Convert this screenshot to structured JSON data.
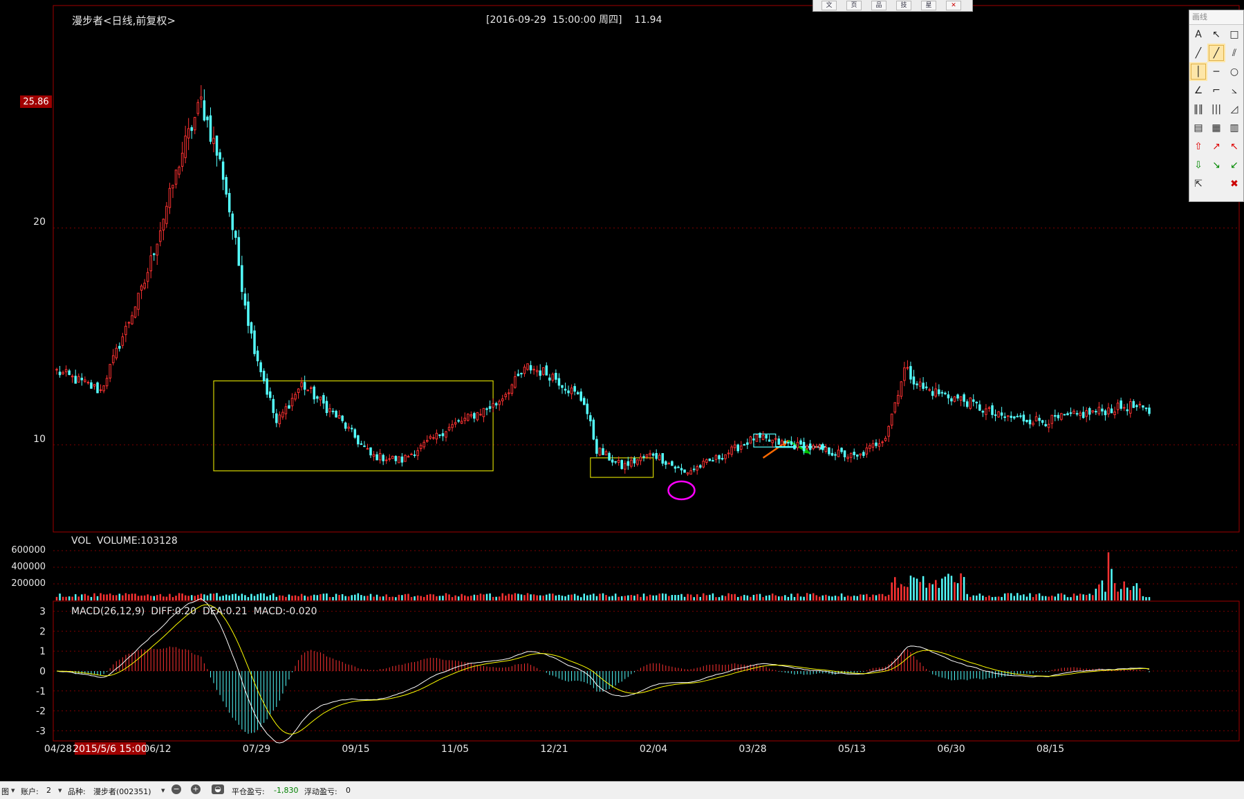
{
  "header": {
    "stock_title": "漫步者<日线,前复权>",
    "cursor_info": "[2016-09-29  15:00:00 周四]    11.94"
  },
  "price_axis": {
    "high_tag": "25.86",
    "ticks": [
      "20",
      "10"
    ]
  },
  "volume_panel": {
    "label": "VOL  VOLUME:103128",
    "ticks": [
      "600000",
      "400000",
      "200000"
    ]
  },
  "macd_panel": {
    "label": "MACD(26,12,9)  DIFF:0.20  DEA:0.21  MACD:-0.020",
    "ticks": [
      "3",
      "2",
      "1",
      "0",
      "-1",
      "-2",
      "-3"
    ]
  },
  "date_axis": {
    "ticks": [
      "04/28",
      "06/12",
      "07/29",
      "09/15",
      "11/05",
      "12/21",
      "02/04",
      "03/28",
      "05/13",
      "06/30",
      "08/15"
    ],
    "cursor_date": "2015/5/6 15:00"
  },
  "toolbar_top": [
    "文",
    "页",
    "品",
    "技",
    "星",
    "✕"
  ],
  "draw_panel": {
    "title": "画线",
    "tools": [
      {
        "name": "text-tool",
        "glyph": "A"
      },
      {
        "name": "pointer-arrow-tool",
        "glyph": "↖"
      },
      {
        "name": "rectangle-tool",
        "glyph": "□"
      },
      {
        "name": "line-tool",
        "glyph": "╱"
      },
      {
        "name": "ray-tool",
        "glyph": "╱"
      },
      {
        "name": "parallel-line-tool",
        "glyph": "⫽"
      },
      {
        "name": "vertical-line-tool",
        "glyph": "│"
      },
      {
        "name": "horizontal-line-tool",
        "glyph": "─"
      },
      {
        "name": "ellipse-tool",
        "glyph": "○"
      },
      {
        "name": "angle-tool",
        "glyph": "∠"
      },
      {
        "name": "fan-line-tool",
        "glyph": "⌐"
      },
      {
        "name": "gann-angle-tool",
        "glyph": "⦣"
      },
      {
        "name": "cycle-line-tool",
        "glyph": "‖‖"
      },
      {
        "name": "fibonacci-cycle-tool",
        "glyph": "|||"
      },
      {
        "name": "fibonacci-fan-tool",
        "glyph": "◿"
      },
      {
        "name": "text-note-tool",
        "glyph": "▤"
      },
      {
        "name": "text-label-tool",
        "glyph": "▦"
      },
      {
        "name": "histogram-tool",
        "glyph": "▥"
      },
      {
        "name": "up-arrow-tool",
        "glyph": "⇧"
      },
      {
        "name": "up-right-arrow-tool",
        "glyph": "↗"
      },
      {
        "name": "up-left-arrow-tool",
        "glyph": "↖"
      },
      {
        "name": "down-arrow-tool",
        "glyph": "⇩"
      },
      {
        "name": "down-right-arrow-tool",
        "glyph": "↘"
      },
      {
        "name": "down-left-arrow-tool",
        "glyph": "↙"
      },
      {
        "name": "select-tool",
        "glyph": "⇱"
      },
      {
        "name": "blank-tool",
        "glyph": ""
      },
      {
        "name": "delete-drawing-tool",
        "glyph": "✖"
      }
    ],
    "selected": [
      4,
      6
    ]
  },
  "status_bar": {
    "mode": "图",
    "account_label": "账户:",
    "account_value": "2",
    "product_label": "品种:",
    "product_value": "漫步者(002351)",
    "close_pnl_label": "平仓盈亏:",
    "close_pnl_value": "-1,830",
    "float_pnl_label": "浮动盈亏:",
    "float_pnl_value": "0"
  },
  "colors": {
    "up": "#ff3232",
    "down": "#54ffff",
    "frame": "#a00000",
    "diff": "#ffffff",
    "dea": "#ffff00",
    "box": "#d4d400",
    "circle": "#ff00ff",
    "cursor_tag_bg": "#a00000"
  },
  "chart_data": {
    "type": "candlestick",
    "series_representation": "approximate trend shape read from the screenshot",
    "price_range": [
      7,
      27
    ],
    "price_keypoints": [
      [
        0,
        13.4
      ],
      [
        14,
        12.5
      ],
      [
        28,
        17.5
      ],
      [
        40,
        23.5
      ],
      [
        46,
        25.86
      ],
      [
        53,
        22.5
      ],
      [
        62,
        15.0
      ],
      [
        70,
        11.0
      ],
      [
        78,
        12.8
      ],
      [
        90,
        11.2
      ],
      [
        100,
        9.5
      ],
      [
        110,
        9.3
      ],
      [
        125,
        10.8
      ],
      [
        140,
        11.9
      ],
      [
        150,
        13.6
      ],
      [
        158,
        13.2
      ],
      [
        168,
        12.0
      ],
      [
        172,
        9.8
      ],
      [
        180,
        9.0
      ],
      [
        190,
        9.6
      ],
      [
        200,
        8.7
      ],
      [
        212,
        9.5
      ],
      [
        222,
        10.3
      ],
      [
        234,
        10.0
      ],
      [
        243,
        9.8
      ],
      [
        255,
        9.4
      ],
      [
        264,
        10.4
      ],
      [
        270,
        13.5
      ],
      [
        276,
        12.6
      ],
      [
        290,
        12.0
      ],
      [
        300,
        11.3
      ],
      [
        315,
        11.1
      ],
      [
        330,
        11.5
      ],
      [
        342,
        11.8
      ],
      [
        348,
        11.5
      ]
    ],
    "bar_count": 349,
    "annotations": [
      {
        "type": "rectangle",
        "color": "box",
        "from_bar": 50,
        "to_bar": 139,
        "price_top": 12.95,
        "price_bottom": 8.8
      },
      {
        "type": "rectangle",
        "color": "box",
        "from_bar": 170,
        "to_bar": 190,
        "price_top": 9.4,
        "price_bottom": 8.5
      },
      {
        "type": "ellipse",
        "color": "circle",
        "center_bar": 199,
        "center_price": 7.9
      },
      {
        "type": "rectangle",
        "color": "down",
        "from_bar": 222,
        "to_bar": 229,
        "price_top": 10.5,
        "price_bottom": 9.9
      },
      {
        "type": "arrow",
        "color": "#ff6a00",
        "from_bar": 225,
        "to_bar": 233,
        "price_from": 9.4,
        "price_to": 10.2
      },
      {
        "type": "arrow",
        "color": "down",
        "from_bar": 229,
        "to_bar": 245,
        "price_from": 9.9,
        "price_to": 9.9
      },
      {
        "type": "arrow",
        "color": "#00c000",
        "from_bar": 233,
        "to_bar": 240,
        "price_from": 10.2,
        "price_to": 9.6
      }
    ],
    "volume": {
      "ylim": [
        0,
        680000
      ]
    },
    "macd": {
      "ylim": [
        -3.3,
        3.3
      ]
    }
  }
}
